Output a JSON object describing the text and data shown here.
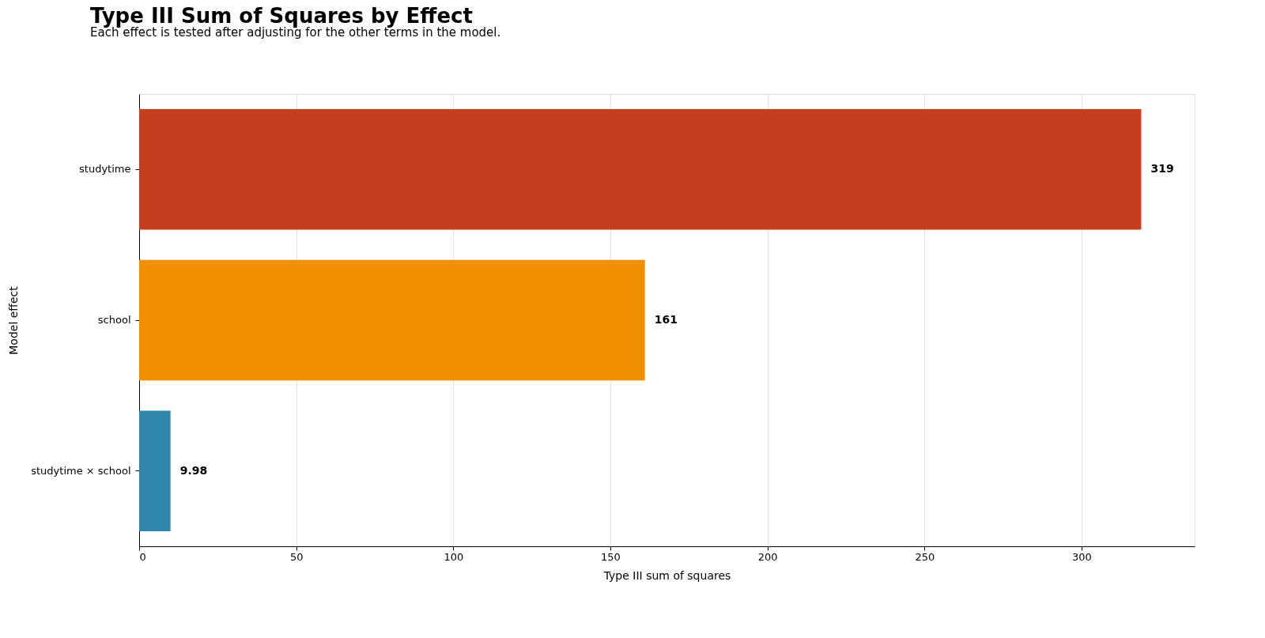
{
  "chart_data": {
    "type": "bar",
    "orientation": "horizontal",
    "title": "Type III Sum of Squares by Effect",
    "subtitle": "Each effect is tested after adjusting for the other terms in the model.",
    "xlabel": "Type III sum of squares",
    "ylabel": "Model effect",
    "categories": [
      "studytime",
      "school",
      "studytime × school"
    ],
    "values": [
      319,
      161,
      9.98
    ],
    "colors": [
      "#c53f1e",
      "#f09000",
      "#2e88ad"
    ],
    "xlim": [
      0,
      336
    ],
    "xticks": [
      0,
      50,
      100,
      150,
      200,
      250,
      300
    ],
    "grid": "x",
    "data_labels": true
  }
}
